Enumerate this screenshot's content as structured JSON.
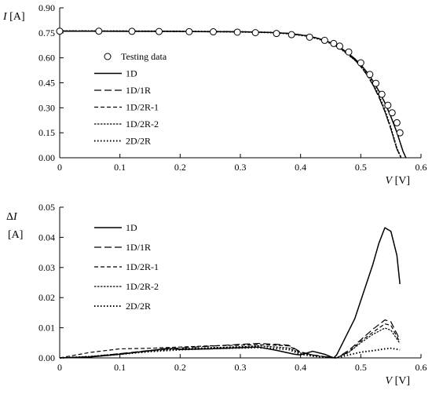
{
  "chart_data": [
    {
      "type": "line",
      "ylabel_symbol": "I",
      "ylabel_unit": " [A]",
      "xlabel_symbol": "V",
      "xlabel_unit": " [V]",
      "xlim": [
        0,
        0.6
      ],
      "ylim": [
        0,
        0.9
      ],
      "xticks": [
        "0",
        "0.1",
        "0.2",
        "0.3",
        "0.4",
        "0.5",
        "0.6"
      ],
      "yticks": [
        "0.00",
        "0.15",
        "0.30",
        "0.45",
        "0.60",
        "0.75",
        "0.90"
      ],
      "grid": false,
      "legend_position": "left",
      "testing_data": {
        "name": "Testing data",
        "marker": "open-circle",
        "x": [
          0.0,
          0.065,
          0.12,
          0.165,
          0.215,
          0.255,
          0.295,
          0.325,
          0.36,
          0.385,
          0.415,
          0.44,
          0.455,
          0.465,
          0.48,
          0.5,
          0.515,
          0.525,
          0.535,
          0.545,
          0.552,
          0.56,
          0.565
        ],
        "y": [
          0.76,
          0.76,
          0.759,
          0.758,
          0.757,
          0.756,
          0.754,
          0.751,
          0.746,
          0.739,
          0.724,
          0.705,
          0.686,
          0.67,
          0.635,
          0.57,
          0.5,
          0.447,
          0.381,
          0.315,
          0.27,
          0.21,
          0.15
        ]
      },
      "series": [
        {
          "name": "1D",
          "dash": "solid",
          "width": 1.5,
          "x": [
            0,
            0.1,
            0.2,
            0.3,
            0.35,
            0.38,
            0.41,
            0.43,
            0.45,
            0.47,
            0.49,
            0.5,
            0.51,
            0.52,
            0.53,
            0.54,
            0.55,
            0.56,
            0.57,
            0.575
          ],
          "y": [
            0.76,
            0.7595,
            0.7585,
            0.756,
            0.752,
            0.746,
            0.733,
            0.716,
            0.691,
            0.651,
            0.595,
            0.558,
            0.515,
            0.462,
            0.401,
            0.33,
            0.247,
            0.152,
            0.04,
            0.0
          ]
        },
        {
          "name": "1D/1R",
          "dash": "9,4",
          "width": 1.2,
          "x": [
            0,
            0.1,
            0.2,
            0.3,
            0.35,
            0.38,
            0.41,
            0.43,
            0.45,
            0.47,
            0.49,
            0.5,
            0.51,
            0.52,
            0.53,
            0.54,
            0.55,
            0.56,
            0.567
          ],
          "y": [
            0.762,
            0.761,
            0.759,
            0.757,
            0.753,
            0.747,
            0.734,
            0.716,
            0.69,
            0.648,
            0.587,
            0.547,
            0.498,
            0.438,
            0.365,
            0.277,
            0.172,
            0.052,
            0.0
          ]
        },
        {
          "name": "1D/2R-1",
          "dash": "5,3",
          "width": 1.2,
          "x": [
            0,
            0.1,
            0.2,
            0.3,
            0.35,
            0.38,
            0.41,
            0.43,
            0.45,
            0.47,
            0.49,
            0.5,
            0.51,
            0.52,
            0.53,
            0.54,
            0.55,
            0.56,
            0.567
          ],
          "y": [
            0.761,
            0.76,
            0.758,
            0.756,
            0.752,
            0.746,
            0.733,
            0.715,
            0.689,
            0.647,
            0.587,
            0.547,
            0.499,
            0.439,
            0.366,
            0.278,
            0.173,
            0.053,
            0.0
          ]
        },
        {
          "name": "1D/2R-2",
          "dash": "2.5,1.5",
          "width": 1.2,
          "x": [
            0,
            0.1,
            0.2,
            0.3,
            0.35,
            0.38,
            0.41,
            0.43,
            0.45,
            0.47,
            0.49,
            0.5,
            0.51,
            0.52,
            0.53,
            0.54,
            0.55,
            0.56,
            0.567
          ],
          "y": [
            0.761,
            0.7605,
            0.759,
            0.756,
            0.752,
            0.746,
            0.732,
            0.714,
            0.688,
            0.646,
            0.588,
            0.549,
            0.502,
            0.443,
            0.37,
            0.282,
            0.176,
            0.054,
            0.0
          ]
        },
        {
          "name": "2D/2R",
          "dash": "1.5,2.5",
          "width": 2,
          "x": [
            0,
            0.1,
            0.2,
            0.3,
            0.35,
            0.38,
            0.41,
            0.43,
            0.45,
            0.47,
            0.49,
            0.5,
            0.51,
            0.52,
            0.53,
            0.54,
            0.55,
            0.56,
            0.567
          ],
          "y": [
            0.761,
            0.7605,
            0.759,
            0.756,
            0.752,
            0.745,
            0.731,
            0.713,
            0.687,
            0.645,
            0.588,
            0.551,
            0.505,
            0.447,
            0.375,
            0.287,
            0.18,
            0.056,
            0.0
          ]
        }
      ]
    },
    {
      "type": "line",
      "ylabel_symbol": "ΔI",
      "ylabel_unit": "[A]",
      "xlabel_symbol": "V",
      "xlabel_unit": " [V]",
      "xlim": [
        0,
        0.6
      ],
      "ylim": [
        0,
        0.05
      ],
      "xticks": [
        "0",
        "0.1",
        "0.2",
        "0.3",
        "0.4",
        "0.5",
        "0.6"
      ],
      "yticks": [
        "0.00",
        "0.01",
        "0.02",
        "0.03",
        "0.04",
        "0.05"
      ],
      "grid": false,
      "legend_position": "left",
      "series": [
        {
          "name": "1D",
          "dash": "solid",
          "width": 1.5,
          "x": [
            0,
            0.05,
            0.1,
            0.15,
            0.18,
            0.2,
            0.25,
            0.3,
            0.33,
            0.36,
            0.39,
            0.4,
            0.42,
            0.44,
            0.455,
            0.46,
            0.47,
            0.49,
            0.51,
            0.52,
            0.53,
            0.54,
            0.55,
            0.56,
            0.565
          ],
          "y": [
            0,
            0.0003,
            0.0012,
            0.0024,
            0.0032,
            0.0028,
            0.003,
            0.0034,
            0.0036,
            0.0025,
            0.0012,
            0.001,
            0.0022,
            0.0012,
            0.0,
            0.001,
            0.005,
            0.013,
            0.025,
            0.031,
            0.038,
            0.0432,
            0.042,
            0.034,
            0.0245
          ]
        },
        {
          "name": "1D/1R",
          "dash": "9,4",
          "width": 1.2,
          "x": [
            0,
            0.05,
            0.1,
            0.15,
            0.2,
            0.25,
            0.3,
            0.33,
            0.36,
            0.38,
            0.4,
            0.42,
            0.44,
            0.46,
            0.48,
            0.5,
            0.52,
            0.54,
            0.55,
            0.565
          ],
          "y": [
            0,
            0.0004,
            0.0014,
            0.0025,
            0.0033,
            0.0039,
            0.0045,
            0.0048,
            0.0045,
            0.0042,
            0.002,
            0.001,
            0.0004,
            0.0,
            0.0025,
            0.006,
            0.0095,
            0.0126,
            0.012,
            0.006
          ]
        },
        {
          "name": "1D/2R-1",
          "dash": "5,3",
          "width": 1.2,
          "x": [
            0,
            0.05,
            0.1,
            0.15,
            0.2,
            0.25,
            0.3,
            0.33,
            0.36,
            0.38,
            0.4,
            0.42,
            0.44,
            0.46,
            0.48,
            0.5,
            0.52,
            0.54,
            0.55,
            0.565
          ],
          "y": [
            0,
            0.0018,
            0.003,
            0.0032,
            0.0036,
            0.004,
            0.0042,
            0.0044,
            0.0042,
            0.004,
            0.0018,
            0.001,
            0.0004,
            0.0,
            0.002,
            0.0055,
            0.0085,
            0.0113,
            0.0108,
            0.0052
          ]
        },
        {
          "name": "1D/2R-2",
          "dash": "2.5,1.5",
          "width": 1.2,
          "x": [
            0,
            0.05,
            0.1,
            0.15,
            0.2,
            0.25,
            0.3,
            0.33,
            0.36,
            0.38,
            0.4,
            0.42,
            0.44,
            0.46,
            0.48,
            0.5,
            0.52,
            0.54,
            0.55,
            0.565
          ],
          "y": [
            0,
            0.0005,
            0.0014,
            0.0022,
            0.003,
            0.0034,
            0.0037,
            0.004,
            0.0036,
            0.0033,
            0.0016,
            0.0008,
            0.0003,
            0.0,
            0.0018,
            0.005,
            0.0078,
            0.0099,
            0.0092,
            0.0048
          ]
        },
        {
          "name": "2D/2R",
          "dash": "1.5,2.5",
          "width": 2,
          "x": [
            0,
            0.05,
            0.1,
            0.15,
            0.2,
            0.25,
            0.3,
            0.33,
            0.36,
            0.38,
            0.4,
            0.42,
            0.44,
            0.46,
            0.48,
            0.5,
            0.52,
            0.54,
            0.55,
            0.565
          ],
          "y": [
            0,
            0.0004,
            0.0012,
            0.0021,
            0.0027,
            0.0031,
            0.0033,
            0.0034,
            0.0031,
            0.0028,
            0.0012,
            0.0006,
            0.0002,
            0.0,
            0.001,
            0.0019,
            0.0024,
            0.003,
            0.0032,
            0.0027
          ]
        }
      ]
    }
  ]
}
